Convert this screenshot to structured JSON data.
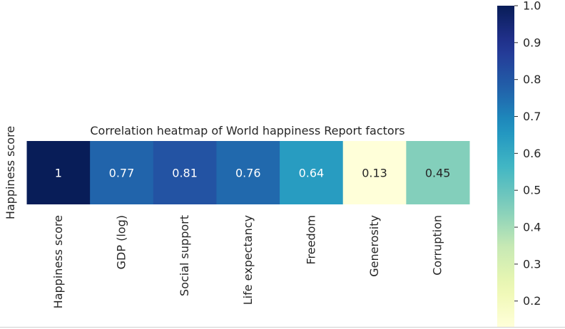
{
  "chart_data": {
    "type": "heatmap",
    "title": "Correlation heatmap of World happiness Report factors",
    "row_labels": [
      "Happiness score"
    ],
    "column_labels": [
      "Happiness score",
      "GDP (log)",
      "Social support",
      "Life expectancy",
      "Freedom",
      "Generosity",
      "Corruption"
    ],
    "values": [
      [
        1,
        0.77,
        0.81,
        0.76,
        0.64,
        0.13,
        0.45
      ]
    ],
    "cell_labels": [
      "1",
      "0.77",
      "0.81",
      "0.76",
      "0.64",
      "0.13",
      "0.45"
    ],
    "colormap": "YlGnBu",
    "colorbar": {
      "range": [
        0.13,
        1.0
      ],
      "ticks": [
        0.2,
        0.3,
        0.4,
        0.5,
        0.6,
        0.7,
        0.8,
        0.9,
        1.0
      ],
      "tick_labels": [
        "0.2",
        "0.3",
        "0.4",
        "0.5",
        "0.6",
        "0.7",
        "0.8",
        "0.9",
        "1.0"
      ],
      "placement": "right"
    },
    "grid": false
  }
}
